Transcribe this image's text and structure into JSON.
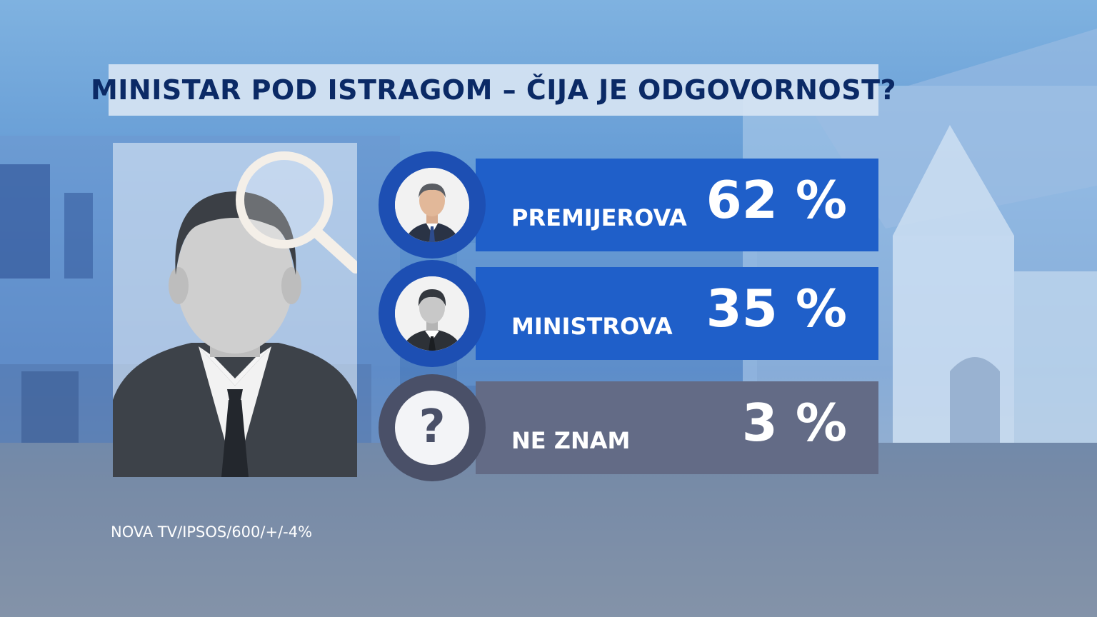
{
  "title": "MINISTAR POD ISTRAGOM – ČIJA JE ODGOVORNOST?",
  "source": "NOVA TV/IPSOS/600/+/-4%",
  "colors": {
    "bar_blue": "#1f5fc9",
    "bar_grey": "#636b86",
    "title_text": "#0b2a66"
  },
  "chart_data": {
    "type": "bar",
    "title": "MINISTAR POD ISTRAGOM – ČIJA JE ODGOVORNOST?",
    "categories": [
      "PREMIJEROVA",
      "MINISTROVA",
      "NE ZNAM"
    ],
    "values": [
      62,
      35,
      3
    ],
    "value_labels": [
      "62 %",
      "35 %",
      "3 %"
    ],
    "icons": [
      "premier-photo-icon",
      "minister-silhouette-icon",
      "question-mark-icon"
    ],
    "icon_text": [
      "",
      "",
      "?"
    ]
  }
}
